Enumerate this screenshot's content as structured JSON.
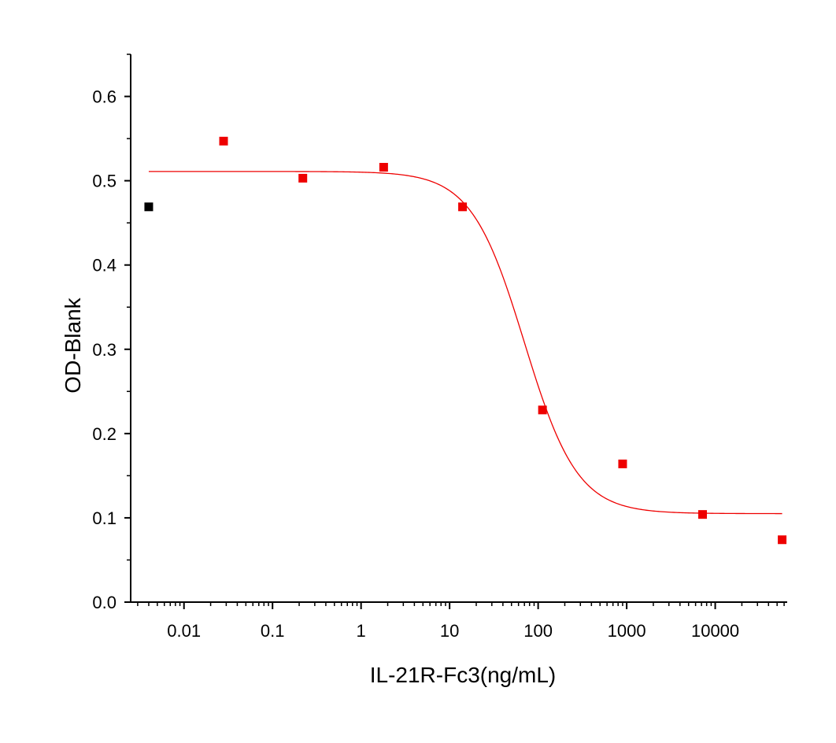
{
  "chart_data": {
    "type": "scatter",
    "title": "",
    "xlabel": "IL-21R-Fc3(ng/mL)",
    "ylabel": "OD-Blank",
    "x_scale": "log",
    "xlim": [
      0.0025,
      65000
    ],
    "ylim": [
      0.0,
      0.65
    ],
    "grid": false,
    "legend": "none",
    "x_ticks": [
      "0.01",
      "0.1",
      "1",
      "10",
      "100",
      "1000",
      "10000"
    ],
    "y_ticks": [
      "0.0",
      "0.1",
      "0.2",
      "0.3",
      "0.4",
      "0.5",
      "0.6"
    ],
    "series": [
      {
        "color": "#000000",
        "marker": "square",
        "points": [
          {
            "x": 0.004,
            "y": 0.469
          }
        ]
      },
      {
        "color": "#ee0000",
        "marker": "square",
        "points": [
          {
            "x": 0.028,
            "y": 0.547
          },
          {
            "x": 0.22,
            "y": 0.503
          },
          {
            "x": 1.8,
            "y": 0.516
          },
          {
            "x": 14,
            "y": 0.469
          },
          {
            "x": 112,
            "y": 0.228
          },
          {
            "x": 900,
            "y": 0.164
          },
          {
            "x": 7200,
            "y": 0.104
          },
          {
            "x": 57000,
            "y": 0.074
          }
        ]
      }
    ],
    "fit_curve": {
      "model": "4PL",
      "color": "#ee0000",
      "top": 0.511,
      "bottom": 0.105,
      "ec50": 70,
      "hill": 1.45,
      "x_range": [
        0.004,
        57000
      ]
    }
  }
}
